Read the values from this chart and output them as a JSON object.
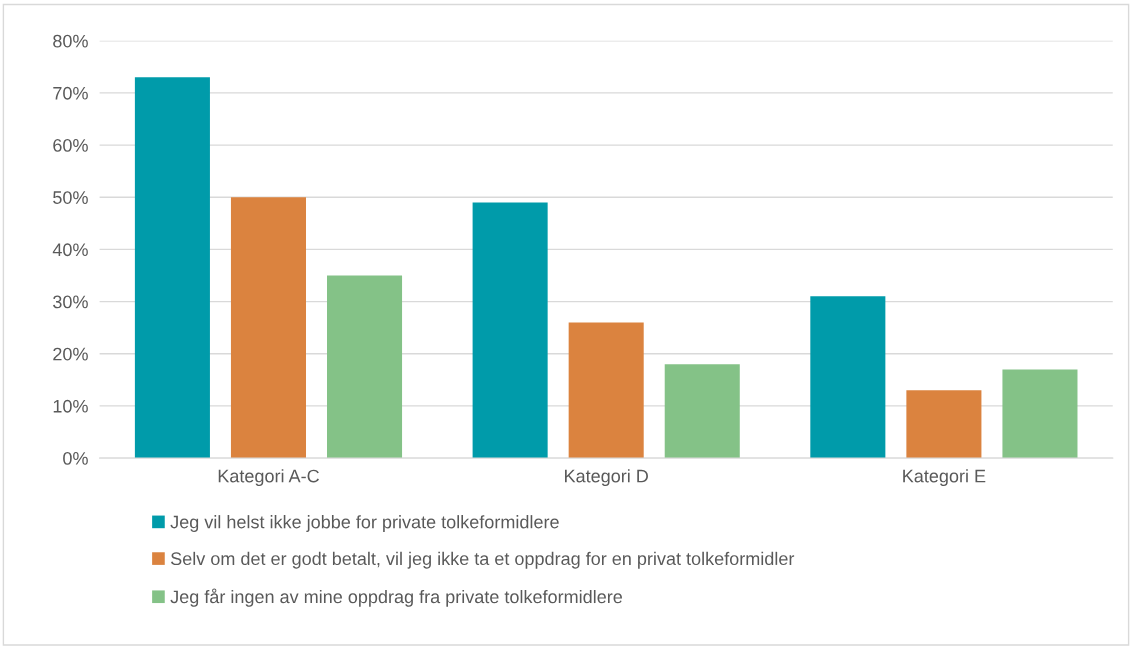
{
  "chart_data": {
    "type": "bar",
    "categories": [
      "Kategori A-C",
      "Kategori D",
      "Kategori E"
    ],
    "series": [
      {
        "name": "Jeg vil helst ikke jobbe for private tolkeformidlere",
        "color": "#009baa",
        "values": [
          73,
          49,
          31
        ]
      },
      {
        "name": "Selv om det er godt betalt, vil jeg ikke ta et oppdrag for en privat tolkeformidler",
        "color": "#db833f",
        "values": [
          50,
          26,
          13
        ]
      },
      {
        "name": "Jeg får ingen av mine oppdrag fra private tolkeformidlere",
        "color": "#84c287",
        "values": [
          35,
          18,
          17
        ]
      }
    ],
    "ylim": [
      0,
      80
    ],
    "yticks": [
      {
        "value": 0,
        "label": "0%"
      },
      {
        "value": 10,
        "label": "10%"
      },
      {
        "value": 20,
        "label": "20%"
      },
      {
        "value": 30,
        "label": "30%"
      },
      {
        "value": 40,
        "label": "40%"
      },
      {
        "value": 50,
        "label": "50%"
      },
      {
        "value": 60,
        "label": "60%"
      },
      {
        "value": 70,
        "label": "70%"
      },
      {
        "value": 80,
        "label": "80%"
      }
    ],
    "grid": "y",
    "legend": "bottom"
  }
}
